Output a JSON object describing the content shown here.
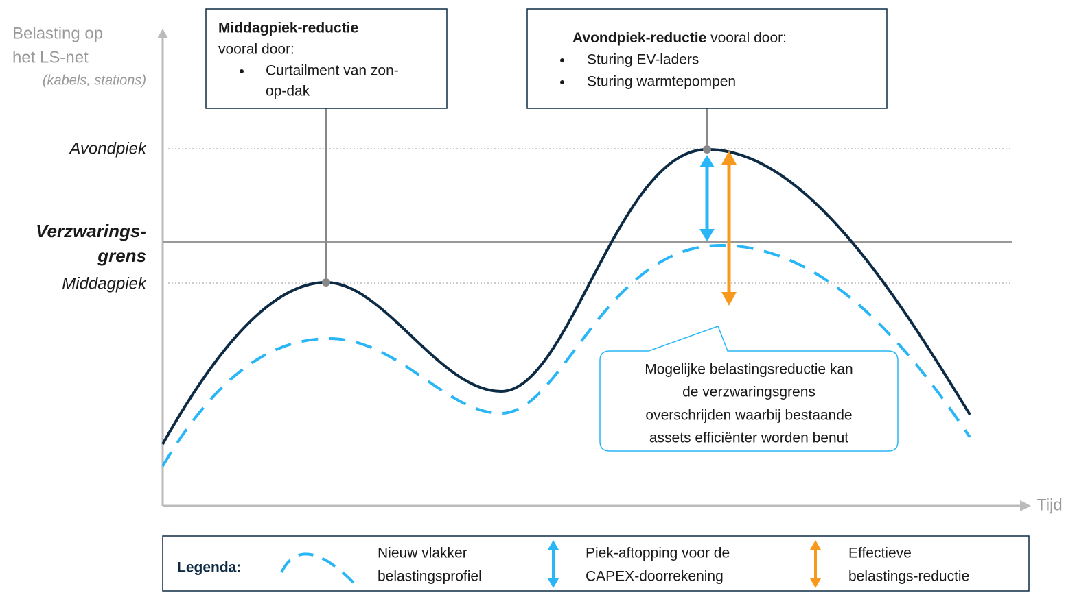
{
  "axis": {
    "y_label": [
      "Belasting op",
      "het LS-net",
      "(kabels, stations)"
    ],
    "x_label": "Tijd",
    "levels": {
      "avondpiek": "Avondpiek",
      "verzwaringsgrens": [
        "Verzwarings-",
        "grens"
      ],
      "middagpiek": "Middagpiek"
    }
  },
  "boxes": [
    {
      "title": "Middagpiek-reductie",
      "intro": "vooral door:",
      "bullets": [
        [
          "Curtailment van zon-",
          "op-dak"
        ]
      ]
    },
    {
      "title": "Avondpiek-reductie",
      "intro": " vooral door:",
      "bullets": [
        [
          "Sturing EV-laders"
        ],
        [
          "Sturing warmtepompen"
        ]
      ]
    }
  ],
  "callout": [
    "Mogelijke belastingsreductie kan",
    "de verzwaringsgrens",
    "overschrijden waarbij bestaande",
    "assets efficiënter worden benut"
  ],
  "legend": {
    "title": "Legenda:",
    "items": [
      [
        "Nieuw vlakker",
        "belastingsprofiel"
      ],
      [
        "Piek-aftopping voor de",
        "CAPEX-doorrekening"
      ],
      [
        "Effectieve",
        "belastings-reductie"
      ]
    ]
  }
}
